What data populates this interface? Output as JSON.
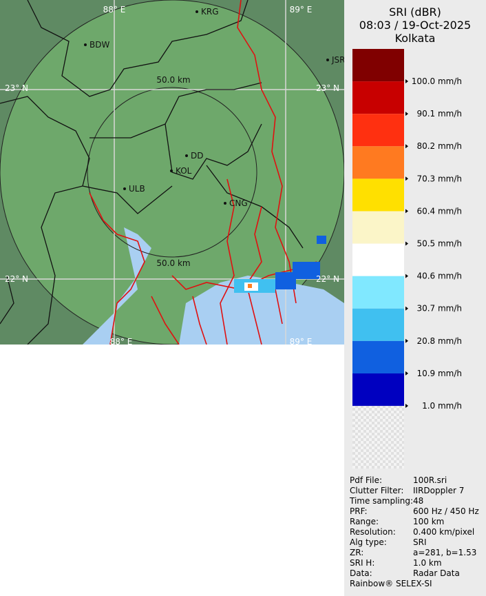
{
  "header": {
    "product": "SRI (dBR)",
    "time": "08:03 / 19-Oct-2025",
    "site": "Kolkata"
  },
  "map": {
    "grid_labels": [
      "88° E",
      "89° E",
      "23° N",
      "23° N",
      "22° N",
      "22° N",
      "88° E",
      "89° E"
    ],
    "ring_labels": [
      "50.0 km",
      "50.0 km"
    ],
    "places": [
      "BDW",
      "KRG",
      "JSR",
      "DD",
      "KOL",
      "ULB",
      "CNG"
    ]
  },
  "legend": {
    "labels": [
      "100.0 mm/h",
      "90.1 mm/h",
      "80.2 mm/h",
      "70.3 mm/h",
      "60.4 mm/h",
      "50.5 mm/h",
      "40.6 mm/h",
      "30.7 mm/h",
      "20.8 mm/h",
      "10.9 mm/h",
      "1.0 mm/h"
    ]
  },
  "info": {
    "rows": [
      [
        "Pdf File:",
        "100R.sri"
      ],
      [
        "Clutter Filter:",
        "IIRDoppler 7"
      ],
      [
        "Time sampling:",
        "48"
      ],
      [
        "PRF:",
        "600 Hz / 450 Hz"
      ],
      [
        "Range:",
        "100 km"
      ],
      [
        "Resolution:",
        "0.400 km/pixel"
      ],
      [
        "Alg type:",
        "SRI"
      ],
      [
        "ZR:",
        "a=281, b=1.53"
      ],
      [
        "SRI H:",
        "1.0 km"
      ],
      [
        "Data:",
        "Radar Data"
      ]
    ],
    "footer": "Rainbow® SELEX-SI"
  }
}
